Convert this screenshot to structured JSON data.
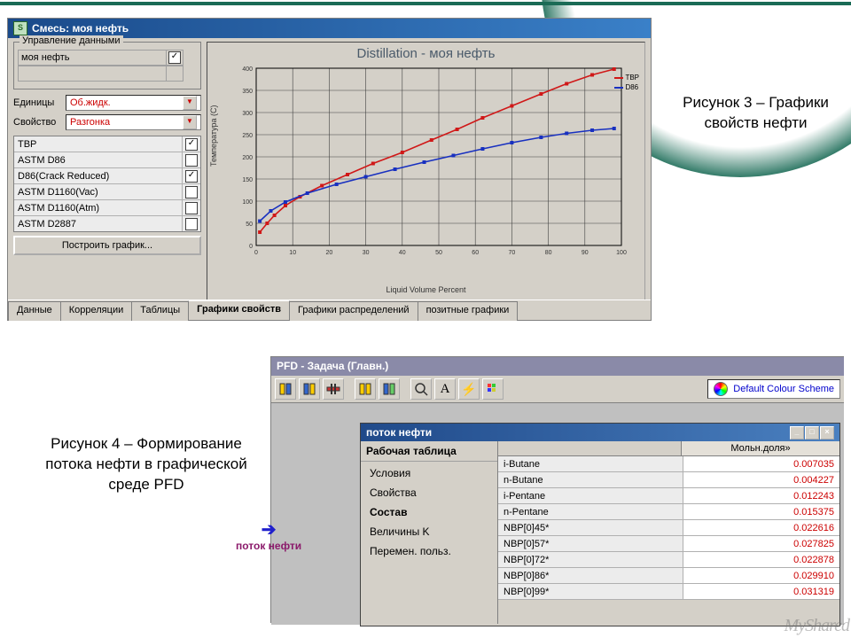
{
  "green_accent": "#1a6b56",
  "caption3": "Рисунок 3 – Графики свойств нефти",
  "caption4": "Рисунок 4 – Формирование потока нефти в графической среде PFD",
  "win1": {
    "title": "Смесь: моя нефть",
    "group_data": "Управление данными",
    "oil_name": "моя нефть",
    "units_label": "Единицы",
    "units_value": "Об.жидк.",
    "prop_label": "Свойство",
    "prop_value": "Разгонка",
    "curves": [
      {
        "name": "TBP",
        "checked": true
      },
      {
        "name": "ASTM D86",
        "checked": false
      },
      {
        "name": "D86(Crack Reduced)",
        "checked": true
      },
      {
        "name": "ASTM D1160(Vac)",
        "checked": false
      },
      {
        "name": "ASTM D1160(Atm)",
        "checked": false
      },
      {
        "name": "ASTM D2887",
        "checked": false
      }
    ],
    "plot_btn": "Построить график...",
    "tabs": [
      "Данные",
      "Корреляции",
      "Таблицы",
      "Графики свойств",
      "Графики распределений",
      "позитные графики"
    ],
    "active_tab": 3,
    "chart": {
      "title": "Distillation - моя нефть",
      "ylabel": "Температура (C)",
      "xlabel": "Liquid Volume Percent",
      "xlim": [
        0,
        100
      ],
      "xtick_step": 10,
      "ylim": [
        0,
        400
      ],
      "ytick_step": 50,
      "bg": "#d4d0c8",
      "grid_color": "#404040",
      "series": [
        {
          "name": "TBP",
          "color": "#d01818",
          "data": [
            [
              1,
              30
            ],
            [
              3,
              50
            ],
            [
              5,
              68
            ],
            [
              8,
              90
            ],
            [
              12,
              110
            ],
            [
              18,
              135
            ],
            [
              25,
              160
            ],
            [
              32,
              185
            ],
            [
              40,
              210
            ],
            [
              48,
              238
            ],
            [
              55,
              262
            ],
            [
              62,
              288
            ],
            [
              70,
              315
            ],
            [
              78,
              342
            ],
            [
              85,
              365
            ],
            [
              92,
              385
            ],
            [
              98,
              398
            ]
          ]
        },
        {
          "name": "D86",
          "color": "#1830c0",
          "data": [
            [
              1,
              55
            ],
            [
              4,
              78
            ],
            [
              8,
              98
            ],
            [
              14,
              118
            ],
            [
              22,
              138
            ],
            [
              30,
              155
            ],
            [
              38,
              172
            ],
            [
              46,
              188
            ],
            [
              54,
              203
            ],
            [
              62,
              218
            ],
            [
              70,
              232
            ],
            [
              78,
              244
            ],
            [
              85,
              253
            ],
            [
              92,
              260
            ],
            [
              98,
              264
            ]
          ]
        }
      ]
    }
  },
  "win2": {
    "title": "PFD - Задача (Главн.)",
    "scheme_label": "Default Colour Scheme",
    "flow_label": "поток нефти",
    "subwin_title": "поток нефти",
    "sub_left_title": "Рабочая таблица",
    "nav": [
      "Условия",
      "Свойства",
      "Состав",
      "Величины K",
      "Перемен. польз."
    ],
    "nav_sel": 2,
    "col_header": "Мольн.доля»",
    "rows": [
      {
        "name": "i-Butane",
        "val": "0.007035"
      },
      {
        "name": "n-Butane",
        "val": "0.004227"
      },
      {
        "name": "i-Pentane",
        "val": "0.012243"
      },
      {
        "name": "n-Pentane",
        "val": "0.015375"
      },
      {
        "name": "NBP[0]45*",
        "val": "0.022616"
      },
      {
        "name": "NBP[0]57*",
        "val": "0.027825"
      },
      {
        "name": "NBP[0]72*",
        "val": "0.022878"
      },
      {
        "name": "NBP[0]86*",
        "val": "0.029910"
      },
      {
        "name": "NBP[0]99*",
        "val": "0.031319"
      }
    ]
  },
  "watermark": "MyShared"
}
